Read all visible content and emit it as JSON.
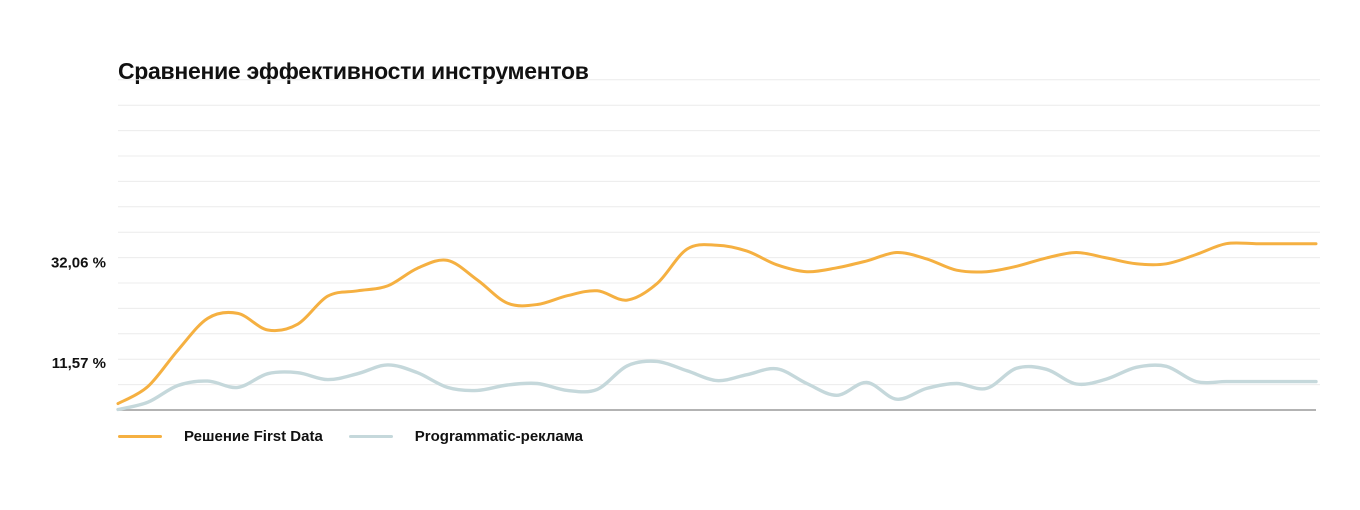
{
  "chart_data": {
    "type": "line",
    "title": "Сравнение эффективности инструментов",
    "xlabel": "",
    "ylabel": "",
    "y_ticks": [
      {
        "value": 32.06,
        "label": "32,06 %"
      },
      {
        "value": 11.57,
        "label": "11,57 %"
      }
    ],
    "ylim": [
      2.0,
      61.0
    ],
    "grid": true,
    "legend_position": "bottom-left",
    "x": [
      0,
      3,
      6,
      9,
      12,
      15,
      18,
      21,
      24,
      27,
      30,
      33,
      36,
      39,
      42,
      45,
      48,
      51,
      54,
      57,
      60,
      63,
      66,
      69,
      72,
      75,
      78,
      81,
      84,
      87,
      90,
      93,
      96,
      99,
      102,
      105,
      108,
      111,
      114,
      117,
      120
    ],
    "series": [
      {
        "name": "Решение First Data",
        "color": "#F5B041",
        "values": [
          3.3,
          6.8,
          14.2,
          20.7,
          21.7,
          18.3,
          19.5,
          25.2,
          26.3,
          27.3,
          30.9,
          32.5,
          28.5,
          23.8,
          23.5,
          25.3,
          26.3,
          24.4,
          27.8,
          34.8,
          35.6,
          34.4,
          31.6,
          30.2,
          31.0,
          32.4,
          34.1,
          32.8,
          30.5,
          30.2,
          31.3,
          33.0,
          34.1,
          33.0,
          31.8,
          31.8,
          33.7,
          35.9,
          35.9,
          35.9,
          35.9
        ]
      },
      {
        "name": "Programmatic-реклама",
        "color": "#C5D8DB",
        "values": [
          2.1,
          3.6,
          7.0,
          7.9,
          6.6,
          9.4,
          9.6,
          8.2,
          9.4,
          11.2,
          9.6,
          6.6,
          6.0,
          7.1,
          7.4,
          6.0,
          6.2,
          11.0,
          11.9,
          10.0,
          8.0,
          9.2,
          10.4,
          7.4,
          5.0,
          7.6,
          4.2,
          6.4,
          7.4,
          6.4,
          10.5,
          10.3,
          7.3,
          8.3,
          10.7,
          10.9,
          7.8,
          7.8,
          7.8,
          7.8,
          7.8
        ]
      }
    ]
  }
}
